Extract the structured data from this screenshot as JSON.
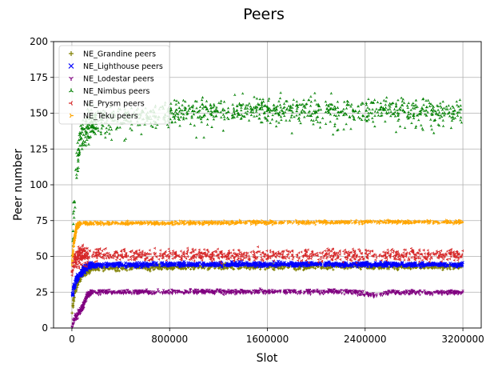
{
  "chart_data": {
    "type": "scatter",
    "title": "Peers",
    "xlabel": "Slot",
    "ylabel": "Peer number",
    "xlim": [
      -150000,
      3350000
    ],
    "ylim": [
      0,
      200
    ],
    "x_ticks": [
      0,
      800000,
      1600000,
      2400000,
      3200000
    ],
    "x_tick_labels": [
      "0",
      "800000",
      "1600000",
      "2400000",
      "3200000"
    ],
    "y_ticks": [
      0,
      25,
      50,
      75,
      100,
      125,
      150,
      175,
      200
    ],
    "y_tick_labels": [
      "0",
      "25",
      "50",
      "75",
      "100",
      "125",
      "150",
      "175",
      "200"
    ],
    "grid": true,
    "legend_position": "top-left",
    "x_range": [
      0,
      3200000
    ],
    "series": [
      {
        "name": "NE_Grandine peers",
        "marker": "+",
        "color": "#808000",
        "rampup": [
          [
            0,
            8
          ],
          [
            15000,
            22
          ],
          [
            40000,
            30
          ],
          [
            70000,
            36
          ],
          [
            110000,
            40
          ],
          [
            160000,
            42
          ]
        ],
        "plateau": [
          [
            160000,
            42
          ],
          [
            1000000,
            43
          ],
          [
            2400000,
            43
          ],
          [
            3200000,
            43
          ]
        ],
        "spread": 2
      },
      {
        "name": "NE_Lighthouse peers",
        "marker": "x",
        "color": "#0000ff",
        "rampup": [
          [
            0,
            20
          ],
          [
            15000,
            28
          ],
          [
            40000,
            34
          ],
          [
            70000,
            38
          ],
          [
            110000,
            42
          ],
          [
            160000,
            44
          ]
        ],
        "plateau": [
          [
            160000,
            44
          ],
          [
            1000000,
            44.5
          ],
          [
            2400000,
            44.5
          ],
          [
            3200000,
            44
          ]
        ],
        "spread": 1.5
      },
      {
        "name": "NE_Lodestar peers",
        "marker": "tri_down",
        "color": "#800080",
        "rampup": [
          [
            0,
            2
          ],
          [
            20000,
            6
          ],
          [
            50000,
            10
          ],
          [
            90000,
            15
          ],
          [
            120000,
            22
          ],
          [
            160000,
            25
          ]
        ],
        "plateau": [
          [
            160000,
            25
          ],
          [
            1000000,
            25.5
          ],
          [
            2300000,
            25.5
          ],
          [
            2450000,
            23
          ],
          [
            2600000,
            25
          ],
          [
            3200000,
            25
          ]
        ],
        "spread": 1.5
      },
      {
        "name": "NE_Nimbus peers",
        "marker": "tri_up",
        "color": "#008000",
        "rampup": [
          [
            0,
            30
          ],
          [
            15000,
            80
          ],
          [
            40000,
            115
          ],
          [
            70000,
            130
          ],
          [
            110000,
            140
          ],
          [
            200000,
            145
          ]
        ],
        "plateau": [
          [
            200000,
            145
          ],
          [
            800000,
            150
          ],
          [
            1000000,
            152
          ],
          [
            1600000,
            153
          ],
          [
            2400000,
            152
          ],
          [
            3200000,
            151
          ]
        ],
        "spread": 8
      },
      {
        "name": "NE_Prysm peers",
        "marker": "tri_left",
        "color": "#d62728",
        "rampup": [
          [
            0,
            35
          ],
          [
            15000,
            45
          ],
          [
            40000,
            49
          ],
          [
            80000,
            51
          ],
          [
            130000,
            51
          ]
        ],
        "plateau": [
          [
            130000,
            51
          ],
          [
            1000000,
            51
          ],
          [
            2400000,
            51
          ],
          [
            3200000,
            51
          ]
        ],
        "spread": 4
      },
      {
        "name": "NE_Teku peers",
        "marker": "tri_right",
        "color": "#ffa500",
        "rampup": [
          [
            0,
            45
          ],
          [
            15000,
            60
          ],
          [
            35000,
            70
          ],
          [
            60000,
            73
          ]
        ],
        "plateau": [
          [
            60000,
            73
          ],
          [
            1000000,
            73.5
          ],
          [
            2400000,
            74
          ],
          [
            3200000,
            74
          ]
        ],
        "spread": 1.2
      }
    ]
  }
}
